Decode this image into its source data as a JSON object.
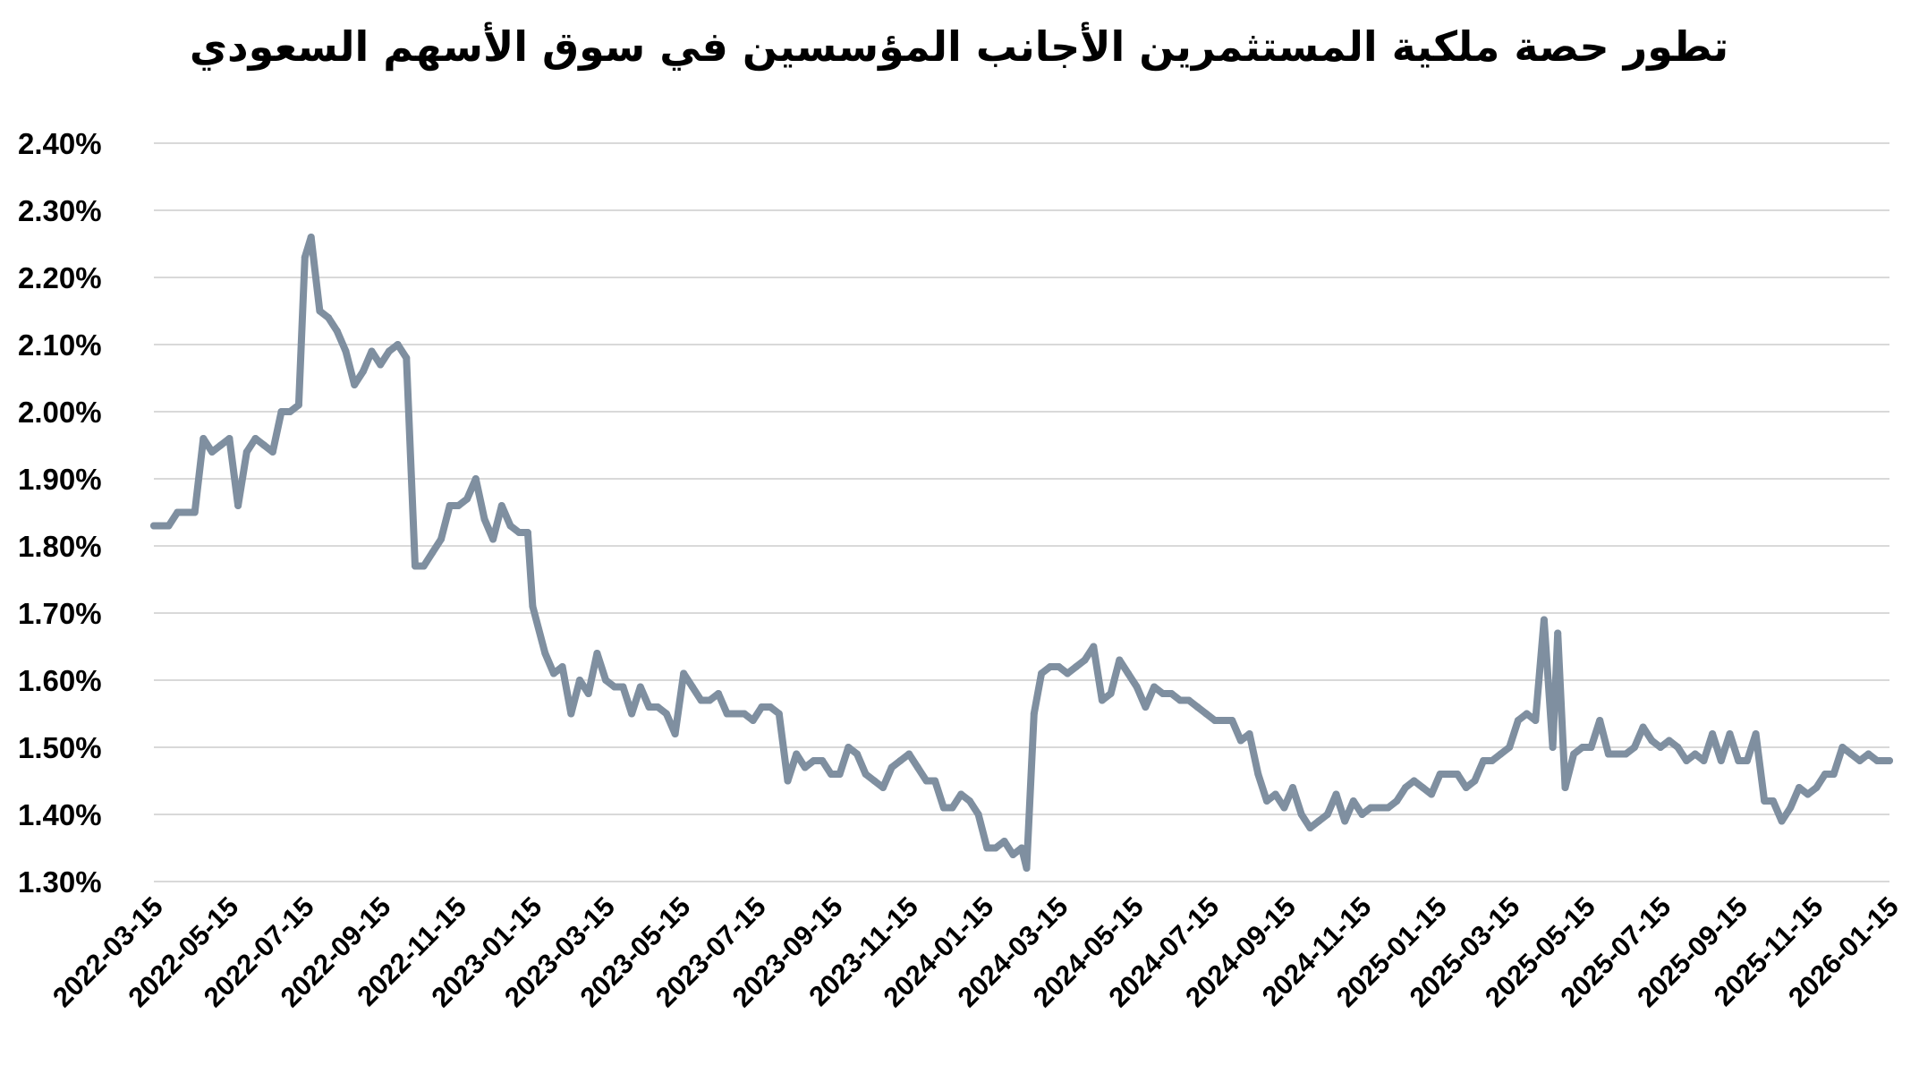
{
  "chart_data": {
    "type": "line",
    "title": "تطور حصة ملكية المستثمرين الأجانب المؤسسين في سوق الأسهم السعودي",
    "xlabel": "",
    "ylabel": "",
    "ylim": [
      1.3,
      2.4
    ],
    "yticks": [
      "2.40%",
      "2.30%",
      "2.20%",
      "2.10%",
      "2.00%",
      "1.90%",
      "1.80%",
      "1.70%",
      "1.60%",
      "1.50%",
      "1.40%",
      "1.30%"
    ],
    "xticks": [
      "2022-03-15",
      "2022-05-15",
      "2022-07-15",
      "2022-09-15",
      "2022-11-15",
      "2023-01-15",
      "2023-03-15",
      "2023-05-15",
      "2023-07-15",
      "2023-09-15",
      "2023-11-15",
      "2024-01-15",
      "2024-03-15",
      "2024-05-15",
      "2024-07-15",
      "2024-09-15",
      "2024-11-15",
      "2025-01-15",
      "2025-03-15",
      "2025-05-15",
      "2025-07-15",
      "2025-09-15",
      "2025-11-15",
      "2026-01-15"
    ],
    "grid": true,
    "legend": "none",
    "color": "#7f8fa0",
    "series": [
      {
        "values": [
          [
            "2022-03-15",
            1.83
          ],
          [
            "2022-03-20",
            1.83
          ],
          [
            "2022-03-27",
            1.83
          ],
          [
            "2022-04-03",
            1.85
          ],
          [
            "2022-04-10",
            1.85
          ],
          [
            "2022-04-17",
            1.85
          ],
          [
            "2022-04-24",
            1.96
          ],
          [
            "2022-05-01",
            1.94
          ],
          [
            "2022-05-08",
            1.95
          ],
          [
            "2022-05-15",
            1.96
          ],
          [
            "2022-05-22",
            1.86
          ],
          [
            "2022-05-29",
            1.94
          ],
          [
            "2022-06-05",
            1.96
          ],
          [
            "2022-06-12",
            1.95
          ],
          [
            "2022-06-19",
            1.94
          ],
          [
            "2022-06-26",
            2.0
          ],
          [
            "2022-07-03",
            2.0
          ],
          [
            "2022-07-10",
            2.01
          ],
          [
            "2022-07-15",
            2.23
          ],
          [
            "2022-07-20",
            2.26
          ],
          [
            "2022-07-27",
            2.15
          ],
          [
            "2022-08-03",
            2.14
          ],
          [
            "2022-08-10",
            2.12
          ],
          [
            "2022-08-17",
            2.09
          ],
          [
            "2022-08-24",
            2.04
          ],
          [
            "2022-08-31",
            2.06
          ],
          [
            "2022-09-07",
            2.09
          ],
          [
            "2022-09-14",
            2.07
          ],
          [
            "2022-09-21",
            2.09
          ],
          [
            "2022-09-28",
            2.1
          ],
          [
            "2022-10-05",
            2.08
          ],
          [
            "2022-10-12",
            1.77
          ],
          [
            "2022-10-19",
            1.77
          ],
          [
            "2022-10-26",
            1.79
          ],
          [
            "2022-11-02",
            1.81
          ],
          [
            "2022-11-09",
            1.86
          ],
          [
            "2022-11-16",
            1.86
          ],
          [
            "2022-11-23",
            1.87
          ],
          [
            "2022-11-30",
            1.9
          ],
          [
            "2022-12-07",
            1.84
          ],
          [
            "2022-12-14",
            1.81
          ],
          [
            "2022-12-21",
            1.86
          ],
          [
            "2022-12-28",
            1.83
          ],
          [
            "2023-01-04",
            1.82
          ],
          [
            "2023-01-11",
            1.82
          ],
          [
            "2023-01-15",
            1.71
          ],
          [
            "2023-01-25",
            1.64
          ],
          [
            "2023-02-01",
            1.61
          ],
          [
            "2023-02-08",
            1.62
          ],
          [
            "2023-02-15",
            1.55
          ],
          [
            "2023-02-22",
            1.6
          ],
          [
            "2023-03-01",
            1.58
          ],
          [
            "2023-03-08",
            1.64
          ],
          [
            "2023-03-15",
            1.6
          ],
          [
            "2023-03-22",
            1.59
          ],
          [
            "2023-03-29",
            1.59
          ],
          [
            "2023-04-05",
            1.55
          ],
          [
            "2023-04-12",
            1.59
          ],
          [
            "2023-04-19",
            1.56
          ],
          [
            "2023-04-26",
            1.56
          ],
          [
            "2023-05-03",
            1.55
          ],
          [
            "2023-05-10",
            1.52
          ],
          [
            "2023-05-17",
            1.61
          ],
          [
            "2023-05-24",
            1.59
          ],
          [
            "2023-05-31",
            1.57
          ],
          [
            "2023-06-07",
            1.57
          ],
          [
            "2023-06-14",
            1.58
          ],
          [
            "2023-06-21",
            1.55
          ],
          [
            "2023-06-28",
            1.55
          ],
          [
            "2023-07-05",
            1.55
          ],
          [
            "2023-07-12",
            1.54
          ],
          [
            "2023-07-19",
            1.56
          ],
          [
            "2023-07-26",
            1.56
          ],
          [
            "2023-08-02",
            1.55
          ],
          [
            "2023-08-09",
            1.45
          ],
          [
            "2023-08-16",
            1.49
          ],
          [
            "2023-08-23",
            1.47
          ],
          [
            "2023-08-30",
            1.48
          ],
          [
            "2023-09-06",
            1.48
          ],
          [
            "2023-09-13",
            1.46
          ],
          [
            "2023-09-20",
            1.46
          ],
          [
            "2023-09-27",
            1.5
          ],
          [
            "2023-10-04",
            1.49
          ],
          [
            "2023-10-11",
            1.46
          ],
          [
            "2023-10-18",
            1.45
          ],
          [
            "2023-10-25",
            1.44
          ],
          [
            "2023-11-01",
            1.47
          ],
          [
            "2023-11-08",
            1.48
          ],
          [
            "2023-11-15",
            1.49
          ],
          [
            "2023-11-22",
            1.47
          ],
          [
            "2023-11-29",
            1.45
          ],
          [
            "2023-12-06",
            1.45
          ],
          [
            "2023-12-13",
            1.41
          ],
          [
            "2023-12-20",
            1.41
          ],
          [
            "2023-12-27",
            1.43
          ],
          [
            "2024-01-03",
            1.42
          ],
          [
            "2024-01-10",
            1.4
          ],
          [
            "2024-01-17",
            1.35
          ],
          [
            "2024-01-24",
            1.35
          ],
          [
            "2024-01-31",
            1.36
          ],
          [
            "2024-02-07",
            1.34
          ],
          [
            "2024-02-14",
            1.35
          ],
          [
            "2024-02-18",
            1.32
          ],
          [
            "2024-02-24",
            1.55
          ],
          [
            "2024-03-01",
            1.61
          ],
          [
            "2024-03-08",
            1.62
          ],
          [
            "2024-03-15",
            1.62
          ],
          [
            "2024-03-22",
            1.61
          ],
          [
            "2024-03-29",
            1.62
          ],
          [
            "2024-04-05",
            1.63
          ],
          [
            "2024-04-12",
            1.65
          ],
          [
            "2024-04-19",
            1.57
          ],
          [
            "2024-04-26",
            1.58
          ],
          [
            "2024-05-03",
            1.63
          ],
          [
            "2024-05-10",
            1.61
          ],
          [
            "2024-05-17",
            1.59
          ],
          [
            "2024-05-24",
            1.56
          ],
          [
            "2024-05-31",
            1.59
          ],
          [
            "2024-06-07",
            1.58
          ],
          [
            "2024-06-14",
            1.58
          ],
          [
            "2024-06-21",
            1.57
          ],
          [
            "2024-06-28",
            1.57
          ],
          [
            "2024-07-05",
            1.56
          ],
          [
            "2024-07-12",
            1.55
          ],
          [
            "2024-07-19",
            1.54
          ],
          [
            "2024-07-26",
            1.54
          ],
          [
            "2024-08-02",
            1.54
          ],
          [
            "2024-08-09",
            1.51
          ],
          [
            "2024-08-16",
            1.52
          ],
          [
            "2024-08-23",
            1.46
          ],
          [
            "2024-08-30",
            1.42
          ],
          [
            "2024-09-06",
            1.43
          ],
          [
            "2024-09-13",
            1.41
          ],
          [
            "2024-09-20",
            1.44
          ],
          [
            "2024-09-27",
            1.4
          ],
          [
            "2024-10-04",
            1.38
          ],
          [
            "2024-10-11",
            1.39
          ],
          [
            "2024-10-18",
            1.4
          ],
          [
            "2024-10-25",
            1.43
          ],
          [
            "2024-11-01",
            1.39
          ],
          [
            "2024-11-08",
            1.42
          ],
          [
            "2024-11-15",
            1.4
          ],
          [
            "2024-11-22",
            1.41
          ],
          [
            "2024-11-29",
            1.41
          ],
          [
            "2024-12-06",
            1.41
          ],
          [
            "2024-12-13",
            1.42
          ],
          [
            "2024-12-20",
            1.44
          ],
          [
            "2024-12-27",
            1.45
          ],
          [
            "2025-01-03",
            1.44
          ],
          [
            "2025-01-10",
            1.43
          ],
          [
            "2025-01-17",
            1.46
          ],
          [
            "2025-01-24",
            1.46
          ],
          [
            "2025-01-31",
            1.46
          ],
          [
            "2025-02-07",
            1.44
          ],
          [
            "2025-02-14",
            1.45
          ],
          [
            "2025-02-21",
            1.48
          ],
          [
            "2025-02-28",
            1.48
          ],
          [
            "2025-03-07",
            1.49
          ],
          [
            "2025-03-14",
            1.5
          ],
          [
            "2025-03-21",
            1.54
          ],
          [
            "2025-03-28",
            1.55
          ],
          [
            "2025-04-04",
            1.54
          ],
          [
            "2025-04-11",
            1.69
          ],
          [
            "2025-04-18",
            1.5
          ],
          [
            "2025-04-22",
            1.67
          ],
          [
            "2025-04-28",
            1.44
          ],
          [
            "2025-05-05",
            1.49
          ],
          [
            "2025-05-12",
            1.5
          ],
          [
            "2025-05-19",
            1.5
          ],
          [
            "2025-05-26",
            1.54
          ],
          [
            "2025-06-02",
            1.49
          ],
          [
            "2025-06-09",
            1.49
          ],
          [
            "2025-06-16",
            1.49
          ],
          [
            "2025-06-23",
            1.5
          ],
          [
            "2025-06-30",
            1.53
          ],
          [
            "2025-07-07",
            1.51
          ],
          [
            "2025-07-14",
            1.5
          ],
          [
            "2025-07-21",
            1.51
          ],
          [
            "2025-07-28",
            1.5
          ],
          [
            "2025-08-04",
            1.48
          ],
          [
            "2025-08-11",
            1.49
          ],
          [
            "2025-08-18",
            1.48
          ],
          [
            "2025-08-25",
            1.52
          ],
          [
            "2025-09-01",
            1.48
          ],
          [
            "2025-09-08",
            1.52
          ],
          [
            "2025-09-15",
            1.48
          ],
          [
            "2025-09-22",
            1.48
          ],
          [
            "2025-09-29",
            1.52
          ],
          [
            "2025-10-06",
            1.42
          ],
          [
            "2025-10-13",
            1.42
          ],
          [
            "2025-10-20",
            1.39
          ],
          [
            "2025-10-27",
            1.41
          ],
          [
            "2025-11-03",
            1.44
          ],
          [
            "2025-11-10",
            1.43
          ],
          [
            "2025-11-17",
            1.44
          ],
          [
            "2025-11-24",
            1.46
          ],
          [
            "2025-12-01",
            1.46
          ],
          [
            "2025-12-08",
            1.5
          ],
          [
            "2025-12-15",
            1.49
          ],
          [
            "2025-12-22",
            1.48
          ],
          [
            "2025-12-29",
            1.49
          ],
          [
            "2026-01-05",
            1.48
          ],
          [
            "2026-01-15",
            1.48
          ]
        ]
      }
    ]
  }
}
